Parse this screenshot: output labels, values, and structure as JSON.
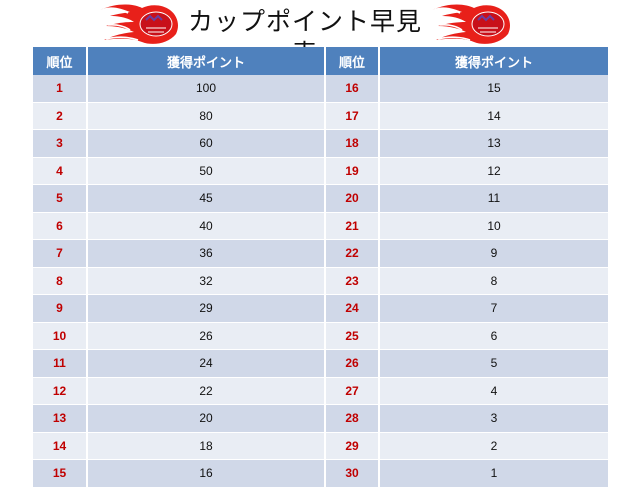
{
  "title": "カップポイント早見表",
  "header": {
    "rank_label_1": "順位",
    "points_label_1": "獲得ポイント",
    "rank_label_2": "順位",
    "points_label_2": "獲得ポイント"
  },
  "colors": {
    "header_bg": "#4f81bd",
    "row_odd": "#d0d8e8",
    "row_even": "#e9edf4",
    "rank_text": "#c00000"
  },
  "logo_icon": "flame-logo-icon",
  "rows": [
    {
      "rank_a": "1",
      "points_a": "100",
      "rank_b": "16",
      "points_b": "15"
    },
    {
      "rank_a": "2",
      "points_a": "80",
      "rank_b": "17",
      "points_b": "14"
    },
    {
      "rank_a": "3",
      "points_a": "60",
      "rank_b": "18",
      "points_b": "13"
    },
    {
      "rank_a": "4",
      "points_a": "50",
      "rank_b": "19",
      "points_b": "12"
    },
    {
      "rank_a": "5",
      "points_a": "45",
      "rank_b": "20",
      "points_b": "11"
    },
    {
      "rank_a": "6",
      "points_a": "40",
      "rank_b": "21",
      "points_b": "10"
    },
    {
      "rank_a": "7",
      "points_a": "36",
      "rank_b": "22",
      "points_b": "9"
    },
    {
      "rank_a": "8",
      "points_a": "32",
      "rank_b": "23",
      "points_b": "8"
    },
    {
      "rank_a": "9",
      "points_a": "29",
      "rank_b": "24",
      "points_b": "7"
    },
    {
      "rank_a": "10",
      "points_a": "26",
      "rank_b": "25",
      "points_b": "6"
    },
    {
      "rank_a": "11",
      "points_a": "24",
      "rank_b": "26",
      "points_b": "5"
    },
    {
      "rank_a": "12",
      "points_a": "22",
      "rank_b": "27",
      "points_b": "4"
    },
    {
      "rank_a": "13",
      "points_a": "20",
      "rank_b": "28",
      "points_b": "3"
    },
    {
      "rank_a": "14",
      "points_a": "18",
      "rank_b": "29",
      "points_b": "2"
    },
    {
      "rank_a": "15",
      "points_a": "16",
      "rank_b": "30",
      "points_b": "1"
    }
  ]
}
